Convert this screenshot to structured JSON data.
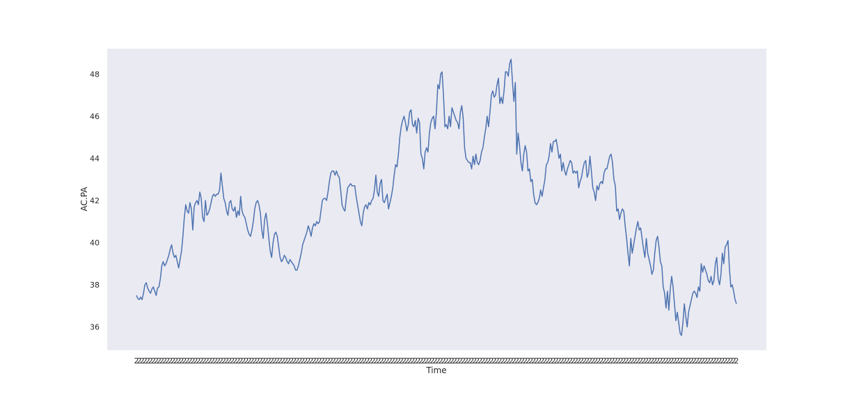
{
  "chart_data": {
    "type": "line",
    "title": "",
    "xlabel": "Time",
    "ylabel": "AC.PA",
    "ylim": [
      34.9,
      49.2
    ],
    "yticks": [
      36,
      38,
      40,
      42,
      44,
      46,
      48
    ],
    "grid": false,
    "background": "#eaeaf2",
    "line_color": "#4c72b0",
    "x_tick_labels": "overlapping dense date labels (illegible)",
    "series": [
      {
        "values": [
          37.5,
          37.35,
          37.3,
          37.42,
          37.3,
          37.6,
          38.0,
          38.1,
          37.85,
          37.7,
          37.6,
          37.8,
          37.9,
          37.7,
          37.5,
          37.85,
          37.9,
          38.3,
          38.9,
          39.1,
          38.9,
          39.0,
          39.2,
          39.4,
          39.7,
          39.9,
          39.5,
          39.3,
          39.4,
          39.1,
          38.8,
          39.2,
          39.6,
          40.3,
          41.2,
          41.8,
          41.5,
          41.4,
          41.9,
          41.6,
          40.6,
          41.7,
          41.9,
          42.0,
          41.8,
          42.4,
          42.1,
          41.2,
          41.0,
          42.0,
          41.3,
          41.4,
          41.6,
          41.9,
          42.2,
          42.3,
          42.2,
          42.3,
          42.3,
          42.5,
          43.3,
          42.7,
          42.1,
          41.9,
          41.5,
          41.3,
          41.9,
          42.0,
          41.6,
          41.5,
          41.7,
          41.2,
          41.5,
          41.3,
          42.2,
          41.5,
          41.3,
          41.2,
          40.9,
          40.6,
          40.4,
          40.3,
          40.6,
          41.0,
          41.6,
          41.9,
          42.0,
          41.8,
          41.4,
          40.6,
          40.2,
          41.1,
          41.4,
          40.9,
          40.2,
          39.6,
          39.3,
          40.0,
          40.4,
          40.5,
          40.3,
          39.8,
          39.3,
          39.1,
          39.2,
          39.4,
          39.3,
          39.1,
          39.0,
          39.2,
          39.1,
          39.0,
          38.9,
          38.7,
          38.7,
          38.9,
          39.2,
          39.5,
          39.9,
          40.1,
          40.3,
          40.5,
          40.8,
          40.6,
          40.3,
          40.7,
          40.9,
          40.8,
          41.0,
          40.9,
          41.0,
          41.5,
          42.0,
          42.1,
          42.1,
          42.0,
          42.4,
          42.9,
          43.3,
          43.4,
          43.4,
          43.2,
          43.4,
          43.2,
          43.1,
          42.5,
          41.8,
          41.6,
          41.5,
          42.1,
          42.6,
          42.7,
          42.8,
          42.7,
          42.7,
          42.7,
          42.2,
          41.8,
          41.4,
          41.0,
          40.8,
          41.4,
          41.7,
          41.8,
          41.6,
          41.9,
          41.8,
          42.0,
          42.1,
          42.5,
          43.2,
          42.4,
          42.2,
          42.8,
          43.0,
          42.0,
          41.9,
          42.1,
          42.3,
          41.6,
          41.9,
          42.2,
          42.6,
          43.2,
          43.7,
          43.6,
          44.2,
          45.0,
          45.5,
          45.8,
          46.0,
          45.7,
          45.3,
          45.6,
          46.2,
          46.3,
          45.6,
          45.5,
          45.8,
          45.2,
          45.9,
          45.7,
          44.2,
          44.0,
          43.5,
          44.3,
          44.5,
          44.3,
          45.2,
          45.7,
          45.9,
          46.0,
          45.4,
          46.2,
          47.5,
          47.3,
          48.0,
          48.1,
          47.0,
          45.5,
          45.6,
          45.4,
          46.0,
          45.5,
          46.4,
          46.2,
          46.0,
          45.8,
          45.7,
          45.4,
          46.2,
          46.5,
          45.9,
          44.5,
          44.0,
          43.9,
          43.8,
          43.8,
          43.5,
          44.1,
          43.7,
          44.2,
          43.8,
          43.7,
          43.9,
          44.3,
          44.5,
          45.0,
          45.4,
          46.0,
          45.5,
          46.2,
          47.0,
          47.2,
          46.9,
          47.0,
          47.5,
          47.8,
          46.6,
          46.9,
          46.6,
          47.2,
          48.1,
          48.1,
          47.9,
          48.5,
          48.7,
          47.6,
          46.7,
          47.6,
          44.2,
          45.2,
          44.6,
          43.8,
          43.4,
          44.2,
          44.6,
          44.3,
          43.4,
          43.5,
          42.9,
          43.0,
          42.3,
          41.9,
          41.8,
          41.9,
          42.1,
          42.5,
          42.2,
          42.6,
          43.0,
          43.7,
          43.8,
          44.1,
          44.7,
          44.3,
          44.8,
          44.8,
          44.9,
          44.5,
          44.0,
          44.2,
          43.4,
          43.8,
          43.4,
          43.2,
          43.5,
          43.7,
          43.9,
          43.8,
          43.3,
          43.4,
          43.3,
          43.4,
          42.6,
          42.9,
          43.1,
          43.5,
          43.8,
          43.9,
          43.1,
          43.3,
          44.1,
          43.4,
          42.6,
          42.4,
          42.0,
          42.7,
          42.5,
          42.8,
          42.9,
          42.8,
          43.3,
          43.5,
          43.5,
          43.8,
          44.1,
          44.2,
          43.8,
          43.0,
          42.7,
          41.5,
          41.6,
          41.1,
          41.4,
          41.6,
          41.5,
          40.8,
          40.2,
          39.5,
          38.9,
          40.2,
          39.5,
          39.9,
          40.3,
          40.7,
          41.0,
          40.6,
          40.7,
          40.2,
          39.7,
          39.3,
          40.2,
          39.5,
          39.2,
          38.9,
          38.5,
          38.7,
          39.5,
          40.1,
          40.3,
          39.8,
          39.1,
          38.9,
          37.9,
          37.6,
          36.9,
          37.7,
          36.8,
          37.8,
          38.4,
          37.9,
          37.1,
          36.3,
          36.7,
          36.2,
          35.7,
          35.6,
          36.2,
          37.1,
          36.5,
          36.0,
          36.7,
          37.0,
          37.3,
          37.6,
          37.7,
          37.6,
          37.4,
          37.9,
          37.7,
          39.0,
          38.6,
          38.9,
          38.7,
          38.5,
          38.2,
          38.1,
          38.4,
          38.0,
          38.2,
          39.0,
          39.3,
          38.3,
          38.0,
          38.5,
          39.5,
          39.0,
          39.8,
          39.9,
          40.1,
          38.8,
          37.9,
          38.0,
          37.7,
          37.3,
          37.1
        ]
      }
    ]
  }
}
